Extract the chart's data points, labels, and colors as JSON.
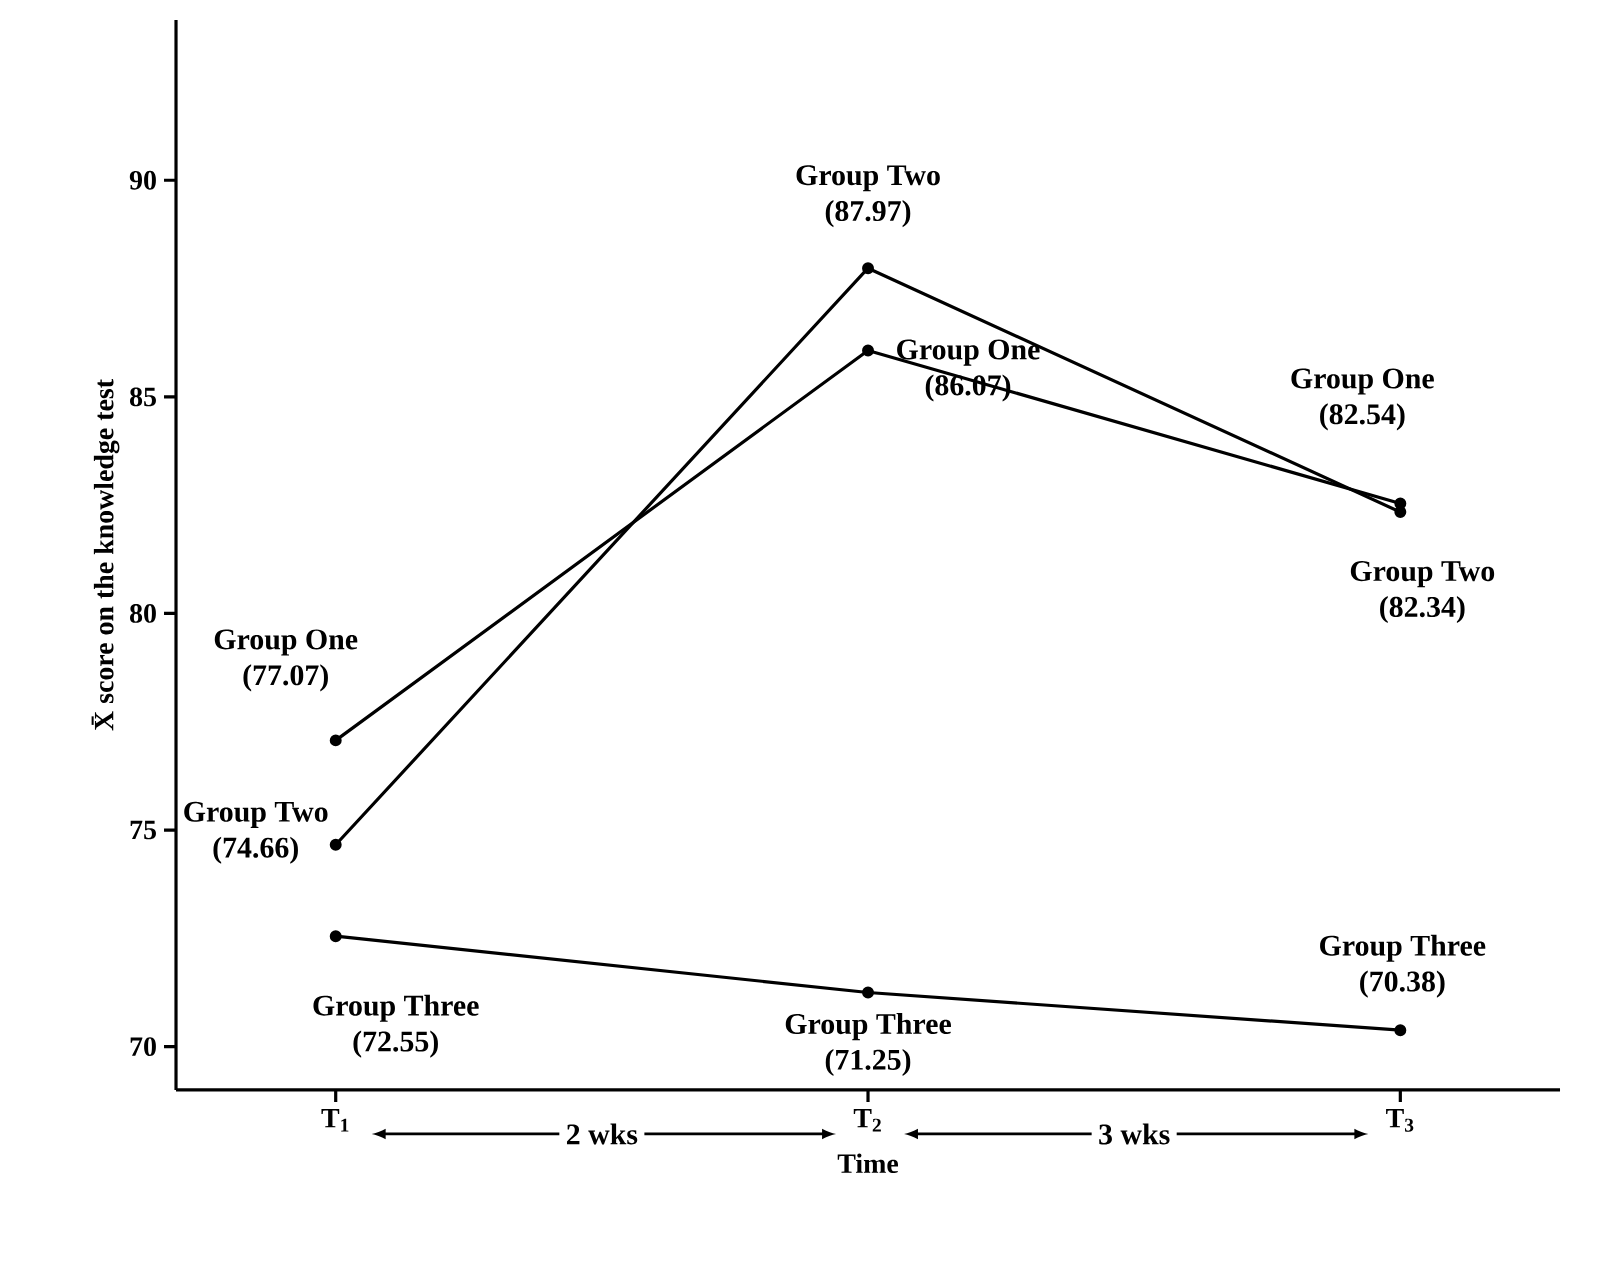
{
  "chart_data": {
    "type": "line",
    "xlabel": "Time",
    "ylabel": "X̄ score on the knowledge test",
    "categories": [
      "T$_{1}$",
      "T$_{2}$",
      "T$_{3}$"
    ],
    "ylim": [
      69,
      93.7
    ],
    "yticks": [
      70,
      75,
      80,
      85,
      90
    ],
    "series": [
      {
        "name": "Group One",
        "color": "#000000",
        "values": [
          77.07,
          86.07,
          82.54
        ],
        "value_labels": [
          "(77.07)",
          "(86.07)",
          "(82.54)"
        ]
      },
      {
        "name": "Group Two",
        "color": "#000000",
        "values": [
          74.66,
          87.97,
          82.34
        ],
        "value_labels": [
          "(74.66)",
          "(87.97)",
          "(82.34)"
        ]
      },
      {
        "name": "Group Three",
        "color": "#000000",
        "values": [
          72.55,
          71.25,
          70.38
        ],
        "value_labels": [
          "(72.55)",
          "(71.25)",
          "(70.38)"
        ]
      }
    ],
    "annotations": [
      "2 wks",
      "3 wks"
    ],
    "marker": "circle",
    "line_style": "solid",
    "grid": false,
    "legend": false
  }
}
